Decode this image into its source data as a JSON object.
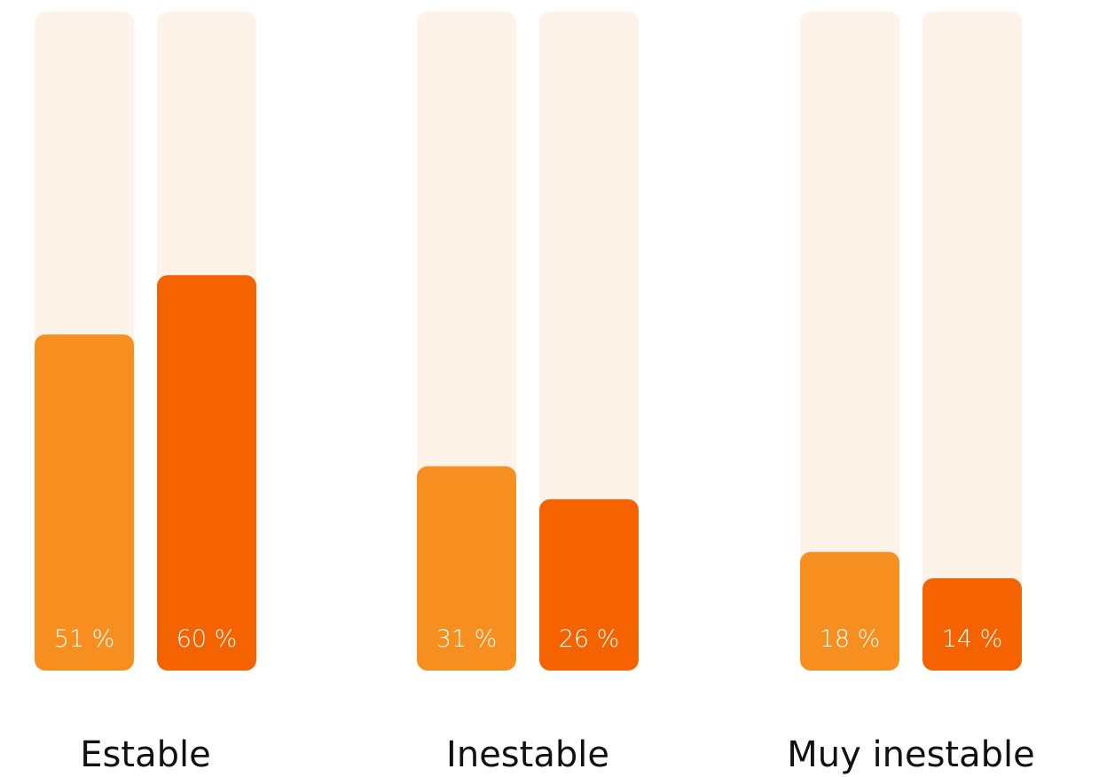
{
  "chart_data": {
    "type": "bar",
    "categories": [
      "Estable",
      "Inestable",
      "Muy inestable"
    ],
    "series": [
      {
        "values": [
          51,
          31,
          18
        ],
        "labels": [
          "51 %",
          "31 %",
          "18 %"
        ],
        "color": "#F68F1F"
      },
      {
        "values": [
          60,
          26,
          14
        ],
        "labels": [
          "60 %",
          "26 %",
          "14 %"
        ],
        "color": "#F56200"
      }
    ],
    "track_color": "#FEF3E9",
    "ylim": [
      0,
      100
    ],
    "grid": false,
    "legend": "none"
  }
}
